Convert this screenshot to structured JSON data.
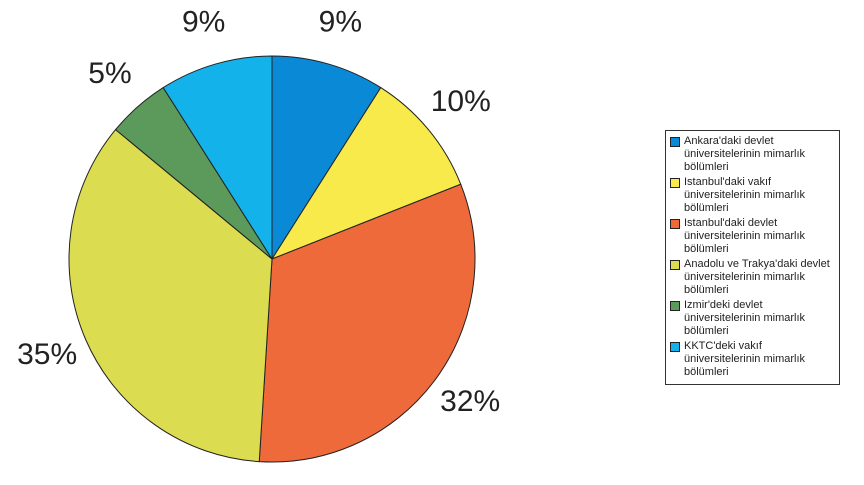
{
  "chart_data": {
    "type": "pie",
    "categories": [
      "Ankara'daki devlet üniversitelerinin mimarlık bölümleri",
      "Istanbul'daki vakıf üniversitelerinin mimarlık bölümleri",
      "Istanbul'daki devlet üniversitelerinin mimarlık bölümleri",
      "Anadolu ve Trakya'daki devlet üniversitelerinin mimarlık bölümleri",
      "Izmir'deki devlet üniversitelerinin mimarlık bölümleri",
      "KKTC'deki vakıf üniversitelerinin mimarlık bölümleri"
    ],
    "values": [
      9,
      10,
      32,
      35,
      5,
      9
    ],
    "value_labels": [
      "9%",
      "10%",
      "32%",
      "35%",
      "5%",
      "9%"
    ],
    "colors": [
      "#0a8ad6",
      "#f7ea4a",
      "#ef6a3a",
      "#dcdc50",
      "#5c9a5c",
      "#14b2ea"
    ],
    "legend": "right"
  }
}
